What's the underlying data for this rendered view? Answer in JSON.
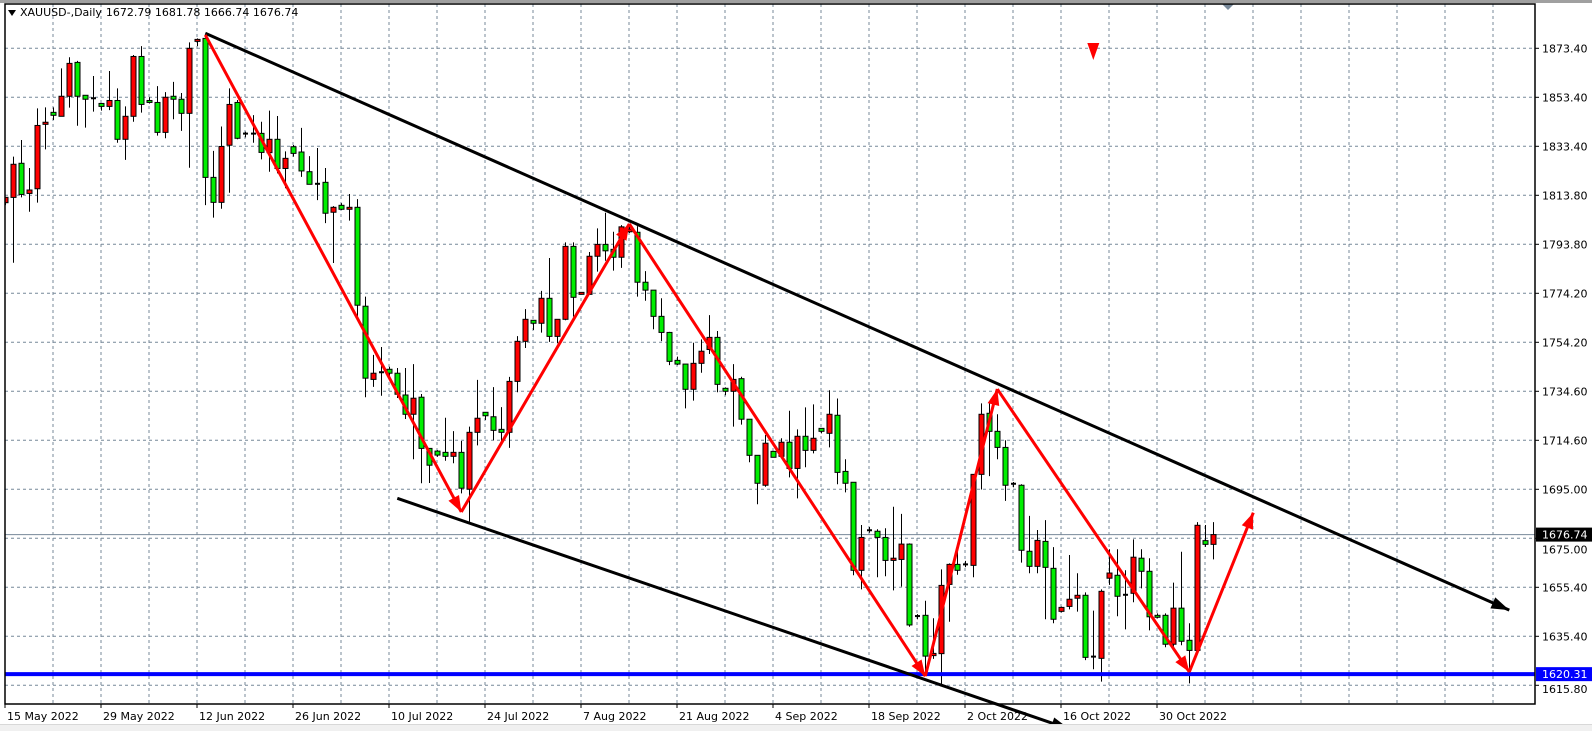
{
  "header": {
    "symbol_timeframe": "XAUUSD-,Daily",
    "ohlc_text": "1672.79 1681.78 1666.74 1676.74",
    "menu_icon": "triangle-down-icon"
  },
  "colors": {
    "bull_candle": "#ff0000",
    "bear_candle": "#00ee00",
    "wick_outline": "#000000",
    "grid": "#778899",
    "support_line": "#0000ff",
    "zigzag": "#ff0000",
    "channel": "#000000",
    "current_price_line": "#778899",
    "current_price_box": "#000000"
  },
  "chart_data": {
    "type": "candlestick",
    "symbol": "XAUUSD-",
    "timeframe": "Daily",
    "bullish_color": "red",
    "bearish_color": "green",
    "grid": true,
    "ylim": [
      1598,
      1888
    ],
    "price_axis_labels": [
      "1873.40",
      "1853.40",
      "1833.40",
      "1813.80",
      "1793.80",
      "1774.20",
      "1754.20",
      "1734.60",
      "1714.60",
      "1695.00",
      "1675.00",
      "1655.40",
      "1635.40",
      "1615.80"
    ],
    "date_axis_labels": [
      "15 May 2022",
      "29 May 2022",
      "12 Jun 2022",
      "26 Jun 2022",
      "10 Jul 2022",
      "24 Jul 2022",
      "7 Aug 2022",
      "21 Aug 2022",
      "4 Sep 2022",
      "18 Sep 2022",
      "2 Oct 2022",
      "16 Oct 2022",
      "30 Oct 2022"
    ],
    "current_price": {
      "value": 1676.74,
      "label": "1676.74"
    },
    "horizontal_line": {
      "value": 1620.31,
      "label": "1620.31"
    },
    "candles_columns": [
      "date",
      "open",
      "high",
      "low",
      "close"
    ],
    "candles": [
      [
        "2022-05-15",
        1810.97,
        1813.1,
        1810.0,
        1813.13
      ],
      [
        "2022-05-16",
        1813.1,
        1829.6,
        1786.7,
        1826.5
      ],
      [
        "2022-05-17",
        1826.9,
        1836.3,
        1813.1,
        1814.3
      ],
      [
        "2022-05-18",
        1814.7,
        1825.0,
        1807.3,
        1816.1
      ],
      [
        "2022-05-19",
        1816.6,
        1849.1,
        1811.0,
        1842.2
      ],
      [
        "2022-05-20",
        1842.65,
        1849.5,
        1832.5,
        1843.5
      ],
      [
        "2022-05-22",
        1847.5,
        1849.5,
        1844.4,
        1846.3
      ],
      [
        "2022-05-23",
        1845.9,
        1865.3,
        1845.8,
        1854.0
      ],
      [
        "2022-05-24",
        1854.0,
        1869.8,
        1849.4,
        1867.3
      ],
      [
        "2022-05-25",
        1867.7,
        1868.3,
        1842.1,
        1854.0
      ],
      [
        "2022-05-26",
        1854.4,
        1854.4,
        1841.3,
        1852.8
      ],
      [
        "2022-05-27",
        1853.2,
        1862.2,
        1847.8,
        1852.8
      ],
      [
        "2022-05-29",
        1851.1,
        1851.1,
        1848.2,
        1849.9
      ],
      [
        "2022-05-30",
        1849.9,
        1864.2,
        1848.4,
        1852.3
      ],
      [
        "2022-05-31",
        1852.3,
        1857.2,
        1835.2,
        1836.6
      ],
      [
        "2022-06-01",
        1836.6,
        1849.9,
        1828.3,
        1845.9
      ],
      [
        "2022-06-02",
        1845.9,
        1870.7,
        1843.7,
        1870.1
      ],
      [
        "2022-06-03",
        1870.1,
        1874.3,
        1847.4,
        1850.7
      ],
      [
        "2022-06-05",
        1852.3,
        1853.6,
        1851.1,
        1851.5
      ],
      [
        "2022-06-06",
        1851.5,
        1858.1,
        1838.1,
        1839.4
      ],
      [
        "2022-06-07",
        1839.4,
        1855.7,
        1837.0,
        1853.6
      ],
      [
        "2022-06-08",
        1854.0,
        1859.8,
        1844.7,
        1852.8
      ],
      [
        "2022-06-09",
        1852.8,
        1855.3,
        1840.0,
        1847.1
      ],
      [
        "2022-06-10",
        1847.1,
        1875.8,
        1825.1,
        1873.4
      ],
      [
        "2022-06-12",
        1876.2,
        1877.4,
        1874.3,
        1877.0
      ],
      [
        "2022-06-13",
        1877.4,
        1878.8,
        1810.0,
        1821.2
      ],
      [
        "2022-06-14",
        1821.2,
        1831.9,
        1804.9,
        1811.1
      ],
      [
        "2022-06-15",
        1811.1,
        1841.8,
        1808.5,
        1833.7
      ],
      [
        "2022-06-16",
        1834.2,
        1857.2,
        1815.0,
        1850.7
      ],
      [
        "2022-06-17",
        1851.5,
        1852.5,
        1836.6,
        1837.0
      ],
      [
        "2022-06-19",
        1838.9,
        1839.7,
        1837.4,
        1838.6
      ],
      [
        "2022-06-20",
        1838.9,
        1846.4,
        1835.2,
        1838.6
      ],
      [
        "2022-06-21",
        1839.0,
        1843.7,
        1828.5,
        1831.3
      ],
      [
        "2022-06-22",
        1831.2,
        1848.2,
        1823.5,
        1836.6
      ],
      [
        "2022-06-23",
        1836.6,
        1846.0,
        1822.8,
        1824.8
      ],
      [
        "2022-06-24",
        1824.8,
        1831.7,
        1816.8,
        1828.9
      ],
      [
        "2022-06-26",
        1833.6,
        1834.3,
        1829.6,
        1830.9
      ],
      [
        "2022-06-27",
        1831.46,
        1841.2,
        1821.4,
        1823.8
      ],
      [
        "2022-06-28",
        1823.5,
        1829.8,
        1818.4,
        1818.4
      ],
      [
        "2022-06-29",
        1818.6,
        1833.1,
        1812.0,
        1818.6
      ],
      [
        "2022-06-30",
        1819.2,
        1825.0,
        1802.7,
        1806.7
      ],
      [
        "2022-07-01",
        1807.1,
        1809.6,
        1786.6,
        1809.1
      ],
      [
        "2022-07-03",
        1809.9,
        1810.8,
        1808.0,
        1808.3
      ],
      [
        "2022-07-04",
        1808.3,
        1814.5,
        1803.7,
        1809.1
      ],
      [
        "2022-07-05",
        1809.1,
        1812.4,
        1763.5,
        1769.5
      ],
      [
        "2022-07-06",
        1769.1,
        1773.0,
        1732.3,
        1740.0
      ],
      [
        "2022-07-07",
        1739.5,
        1749.4,
        1736.5,
        1742.0
      ],
      [
        "2022-07-08",
        1742.4,
        1752.6,
        1732.9,
        1742.4
      ],
      [
        "2022-07-10",
        1743.6,
        1744.6,
        1740.6,
        1742.0
      ],
      [
        "2022-07-11",
        1742.0,
        1744.1,
        1732.0,
        1733.5
      ],
      [
        "2022-07-12",
        1733.2,
        1744.1,
        1723.5,
        1725.4
      ],
      [
        "2022-07-13",
        1725.4,
        1745.7,
        1707.2,
        1731.9
      ],
      [
        "2022-07-14",
        1732.3,
        1733.6,
        1697.5,
        1711.6
      ],
      [
        "2022-07-15",
        1711.6,
        1711.6,
        1697.6,
        1704.8
      ],
      [
        "2022-07-17",
        1710.5,
        1710.9,
        1708.2,
        1708.9
      ],
      [
        "2022-07-18",
        1710.0,
        1724.0,
        1706.6,
        1708.4
      ],
      [
        "2022-07-19",
        1708.4,
        1718.6,
        1705.6,
        1710.0
      ],
      [
        "2022-07-20",
        1710.0,
        1714.6,
        1693.4,
        1695.5
      ],
      [
        "2022-07-21",
        1695.1,
        1720.4,
        1682.0,
        1718.1
      ],
      [
        "2022-07-22",
        1718.1,
        1739.3,
        1712.8,
        1723.8
      ],
      [
        "2022-07-24",
        1726.2,
        1726.2,
        1723.1,
        1724.8
      ],
      [
        "2022-07-25",
        1724.4,
        1736.4,
        1714.9,
        1718.9
      ],
      [
        "2022-07-26",
        1719.3,
        1728.3,
        1713.8,
        1718.1
      ],
      [
        "2022-07-27",
        1718.1,
        1740.5,
        1711.8,
        1738.7
      ],
      [
        "2022-07-28",
        1738.7,
        1757.0,
        1734.3,
        1754.9
      ],
      [
        "2022-07-29",
        1754.9,
        1767.9,
        1752.2,
        1763.8
      ],
      [
        "2022-07-31",
        1763.4,
        1763.5,
        1759.5,
        1762.2
      ],
      [
        "2022-08-01",
        1762.2,
        1775.3,
        1758.4,
        1772.3
      ],
      [
        "2022-08-02",
        1772.3,
        1788.6,
        1754.7,
        1756.9
      ],
      [
        "2022-08-03",
        1756.9,
        1763.9,
        1754.1,
        1763.8
      ],
      [
        "2022-08-04",
        1763.8,
        1794.9,
        1763.4,
        1793.3
      ],
      [
        "2022-08-05",
        1793.3,
        1794.9,
        1764.9,
        1772.7
      ],
      [
        "2022-08-07",
        1773.9,
        1774.7,
        1773.9,
        1774.7
      ],
      [
        "2022-08-08",
        1773.9,
        1791.0,
        1774.0,
        1789.3
      ],
      [
        "2022-08-09",
        1789.3,
        1800.6,
        1783.1,
        1794.1
      ],
      [
        "2022-08-10",
        1794.1,
        1806.9,
        1787.5,
        1791.5
      ],
      [
        "2022-08-11",
        1792.1,
        1799.2,
        1783.5,
        1788.9
      ],
      [
        "2022-08-12",
        1788.9,
        1801.9,
        1784.6,
        1801.2
      ],
      [
        "2022-08-14",
        1799.2,
        1802.4,
        1798.7,
        1800.3
      ],
      [
        "2022-08-15",
        1799.0,
        1801.5,
        1773.0,
        1778.8
      ],
      [
        "2022-08-16",
        1778.8,
        1783.3,
        1771.3,
        1775.6
      ],
      [
        "2022-08-17",
        1775.6,
        1775.6,
        1759.8,
        1765.0
      ],
      [
        "2022-08-18",
        1765.0,
        1772.3,
        1755.0,
        1758.5
      ],
      [
        "2022-08-19",
        1758.5,
        1758.7,
        1745.3,
        1746.8
      ],
      [
        "2022-08-21",
        1747.2,
        1748.7,
        1745.3,
        1745.7
      ],
      [
        "2022-08-22",
        1745.7,
        1745.7,
        1727.8,
        1735.5
      ],
      [
        "2022-08-23",
        1735.5,
        1754.3,
        1730.9,
        1746.0
      ],
      [
        "2022-08-24",
        1746.0,
        1755.7,
        1742.2,
        1750.9
      ],
      [
        "2022-08-25",
        1751.6,
        1765.5,
        1749.8,
        1756.5
      ],
      [
        "2022-08-26",
        1756.5,
        1759.1,
        1734.3,
        1737.5
      ],
      [
        "2022-08-28",
        1735.9,
        1736.3,
        1733.1,
        1734.7
      ],
      [
        "2022-08-29",
        1734.7,
        1745.7,
        1720.4,
        1739.5
      ],
      [
        "2022-08-30",
        1739.8,
        1740.6,
        1721.2,
        1723.4
      ],
      [
        "2022-08-31",
        1723.4,
        1723.4,
        1706.0,
        1708.8
      ],
      [
        "2022-09-01",
        1708.8,
        1708.8,
        1689.0,
        1697.5
      ],
      [
        "2022-09-02",
        1696.7,
        1717.0,
        1696.1,
        1713.7
      ],
      [
        "2022-09-04",
        1710.4,
        1710.4,
        1708.0,
        1708.0
      ],
      [
        "2022-09-05",
        1708.4,
        1715.7,
        1707.6,
        1714.1
      ],
      [
        "2022-09-06",
        1714.1,
        1726.8,
        1699.9,
        1703.5
      ],
      [
        "2022-09-07",
        1703.5,
        1719.3,
        1691.4,
        1716.5
      ],
      [
        "2022-09-08",
        1716.5,
        1728.2,
        1704.0,
        1710.8
      ],
      [
        "2022-09-09",
        1710.8,
        1729.4,
        1709.6,
        1715.7
      ],
      [
        "2022-09-11",
        1719.7,
        1719.7,
        1717.7,
        1718.5
      ],
      [
        "2022-09-12",
        1717.7,
        1735.1,
        1712.0,
        1725.4
      ],
      [
        "2022-09-13",
        1725.0,
        1731.8,
        1697.1,
        1701.9
      ],
      [
        "2022-09-14",
        1702.3,
        1707.2,
        1693.8,
        1697.5
      ],
      [
        "2022-09-15",
        1697.9,
        1698.0,
        1660.3,
        1662.3
      ],
      [
        "2022-09-16",
        1662.3,
        1680.6,
        1654.6,
        1675.6
      ],
      [
        "2022-09-18",
        1678.5,
        1679.8,
        1677.5,
        1678.1
      ],
      [
        "2022-09-19",
        1678.1,
        1678.9,
        1659.5,
        1675.6
      ],
      [
        "2022-09-20",
        1675.6,
        1679.3,
        1659.9,
        1666.3
      ],
      [
        "2022-09-21",
        1666.3,
        1688.0,
        1654.2,
        1667.2
      ],
      [
        "2022-09-22",
        1666.7,
        1685.1,
        1655.7,
        1672.9
      ],
      [
        "2022-09-23",
        1672.9,
        1673.2,
        1639.5,
        1640.2
      ],
      [
        "2022-09-25",
        1643.8,
        1644.6,
        1642.5,
        1643.8
      ],
      [
        "2022-09-26",
        1644.1,
        1650.0,
        1621.3,
        1627.6
      ],
      [
        "2022-09-27",
        1627.8,
        1642.9,
        1626.5,
        1628.7
      ],
      [
        "2022-09-28",
        1628.6,
        1662.7,
        1615.9,
        1656.2
      ],
      [
        "2022-09-29",
        1656.6,
        1665.1,
        1641.5,
        1664.7
      ],
      [
        "2022-09-30",
        1664.7,
        1671.8,
        1660.5,
        1662.3
      ],
      [
        "2022-10-02",
        1664.7,
        1666.1,
        1663.6,
        1664.7
      ],
      [
        "2022-10-03",
        1664.3,
        1701.1,
        1659.5,
        1701.1
      ],
      [
        "2022-10-04",
        1701.1,
        1729.8,
        1695.0,
        1725.4
      ],
      [
        "2022-10-05",
        1725.8,
        1729.8,
        1700.4,
        1718.5
      ],
      [
        "2022-10-06",
        1718.5,
        1725.4,
        1707.2,
        1712.0
      ],
      [
        "2022-10-07",
        1712.0,
        1714.9,
        1690.4,
        1696.7
      ],
      [
        "2022-10-09",
        1697.3,
        1698.0,
        1695.9,
        1696.7
      ],
      [
        "2022-10-10",
        1696.7,
        1697.1,
        1665.4,
        1670.4
      ],
      [
        "2022-10-11",
        1670.0,
        1684.3,
        1661.1,
        1663.9
      ],
      [
        "2022-10-12",
        1663.9,
        1678.6,
        1661.1,
        1674.4
      ],
      [
        "2022-10-13",
        1674.0,
        1682.6,
        1642.5,
        1663.5
      ],
      [
        "2022-10-14",
        1663.1,
        1671.7,
        1640.9,
        1642.5
      ],
      [
        "2022-10-16",
        1645.7,
        1647.6,
        1645.3,
        1647.3
      ],
      [
        "2022-10-17",
        1647.7,
        1668.5,
        1646.5,
        1650.6
      ],
      [
        "2022-10-18",
        1651.0,
        1661.1,
        1645.6,
        1652.2
      ],
      [
        "2022-10-19",
        1652.2,
        1653.4,
        1626.0,
        1627.1
      ],
      [
        "2022-10-20",
        1627.4,
        1646.0,
        1622.3,
        1627.4
      ],
      [
        "2022-10-21",
        1626.7,
        1654.6,
        1617.3,
        1653.8
      ],
      [
        "2022-10-23",
        1659.1,
        1670.8,
        1656.4,
        1661.2
      ],
      [
        "2022-10-24",
        1660.3,
        1670.8,
        1643.7,
        1651.8
      ],
      [
        "2022-10-25",
        1652.4,
        1662.3,
        1638.4,
        1652.4
      ],
      [
        "2022-10-26",
        1653.0,
        1674.8,
        1649.4,
        1667.6
      ],
      [
        "2022-10-27",
        1667.2,
        1670.8,
        1655.0,
        1661.9
      ],
      [
        "2022-10-28",
        1661.9,
        1667.2,
        1638.0,
        1643.5
      ],
      [
        "2022-10-30",
        1644.1,
        1644.9,
        1642.9,
        1643.3
      ],
      [
        "2022-10-31",
        1644.1,
        1644.9,
        1631.2,
        1632.4
      ],
      [
        "2022-11-01",
        1632.4,
        1657.3,
        1631.4,
        1647.0
      ],
      [
        "2022-11-02",
        1647.0,
        1669.8,
        1632.0,
        1633.6
      ],
      [
        "2022-11-03",
        1634.0,
        1640.9,
        1616.6,
        1629.9
      ],
      [
        "2022-11-04",
        1629.9,
        1681.8,
        1629.9,
        1680.5
      ],
      [
        "2022-11-06",
        1674.3,
        1680.6,
        1671.8,
        1672.8
      ],
      [
        "2022-11-07",
        1672.79,
        1681.78,
        1666.74,
        1676.74
      ]
    ],
    "objects": {
      "zigzag_arrows": [
        [
          "2022-06-13",
          1878.8
        ],
        [
          "2022-07-20",
          1685.9
        ],
        [
          "2022-08-14",
          1802.4
        ],
        [
          "2022-09-26",
          1619.5
        ],
        [
          "2022-10-06",
          1735.6
        ],
        [
          "2022-11-03",
          1621.2
        ],
        [
          "2022-11-13",
          1685.6
        ]
      ],
      "channel_upper": [
        [
          "2022-06-13",
          1879.5
        ],
        [
          "2022-12-20",
          1646.2
        ]
      ],
      "channel_lower": [
        [
          "2022-07-11",
          1691.4
        ],
        [
          "2022-10-17",
          1598.1
        ]
      ],
      "arrow_down_marker": [
        "2022-10-20",
        1872.7
      ]
    }
  }
}
